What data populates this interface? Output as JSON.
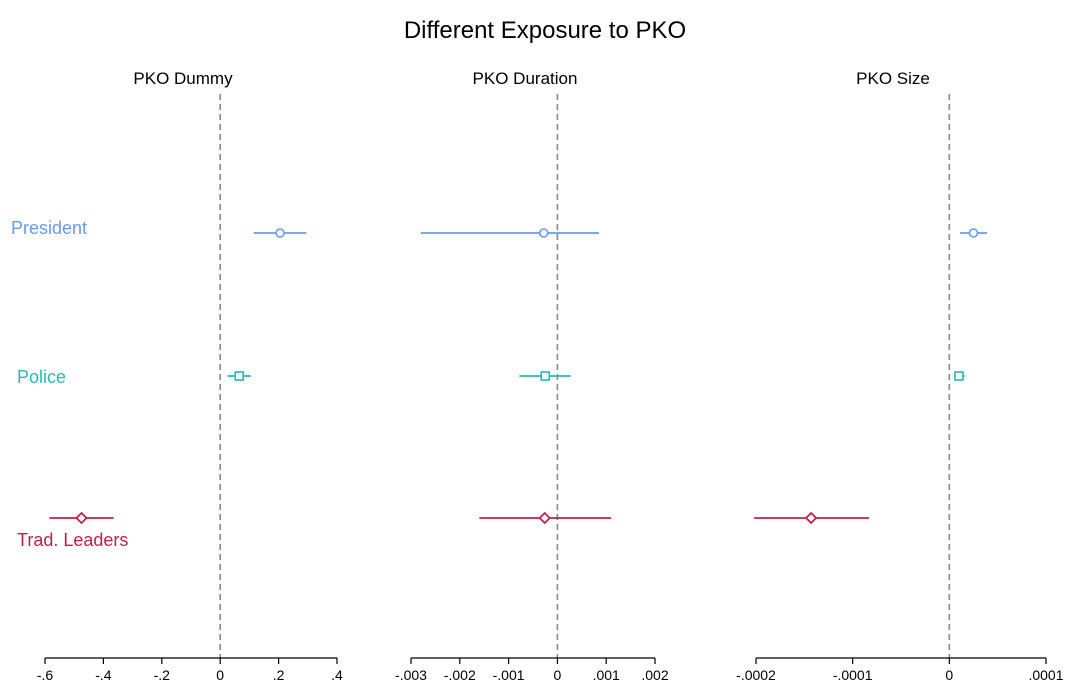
{
  "title": "Different Exposure to PKO",
  "colors": {
    "president": "#6B9AE8",
    "police": "#26BDB1",
    "trad_leaders": "#C0204C",
    "zero_line": "#888888",
    "axis": "#000000"
  },
  "rows": [
    {
      "key": "president",
      "label": "President",
      "marker": "circle"
    },
    {
      "key": "police",
      "label": "Police",
      "marker": "square"
    },
    {
      "key": "trad_leaders",
      "label": "Trad. Leaders",
      "marker": "diamond"
    }
  ],
  "chart_data": [
    {
      "type": "scatter",
      "subtitle": "PKO Dummy",
      "xlim": [
        -0.6,
        0.4
      ],
      "ticks": [
        -0.6,
        -0.4,
        -0.2,
        0,
        0.2,
        0.4
      ],
      "tick_labels": [
        "-.6",
        "-.4",
        "-.2",
        "0",
        ".2",
        ".4"
      ],
      "reference_line": 0,
      "estimates": [
        {
          "row": "president",
          "value": 0.205,
          "ci": [
            0.115,
            0.295
          ]
        },
        {
          "row": "police",
          "value": 0.065,
          "ci": [
            0.025,
            0.105
          ]
        },
        {
          "row": "trad_leaders",
          "value": -0.475,
          "ci": [
            -0.585,
            -0.365
          ]
        }
      ]
    },
    {
      "type": "scatter",
      "subtitle": "PKO Duration",
      "xlim": [
        -0.003,
        0.002
      ],
      "ticks": [
        -0.003,
        -0.002,
        -0.001,
        0,
        0.001,
        0.002
      ],
      "tick_labels": [
        "-.003",
        "-.002",
        "-.001",
        "0",
        ".001",
        ".002"
      ],
      "reference_line": 0,
      "estimates": [
        {
          "row": "president",
          "value": -0.00028,
          "ci": [
            -0.0028,
            0.00085
          ]
        },
        {
          "row": "police",
          "value": -0.00025,
          "ci": [
            -0.00078,
            0.00027
          ]
        },
        {
          "row": "trad_leaders",
          "value": -0.00026,
          "ci": [
            -0.0016,
            0.0011
          ]
        }
      ]
    },
    {
      "type": "scatter",
      "subtitle": "PKO Size",
      "xlim": [
        -0.0002,
        0.0001
      ],
      "ticks": [
        -0.0002,
        -0.0001,
        0,
        0.0001
      ],
      "tick_labels": [
        "-.0002",
        "-.0001",
        "0",
        ".0001"
      ],
      "reference_line": 0,
      "estimates": [
        {
          "row": "president",
          "value": 2.5e-05,
          "ci": [
            1.1e-05,
            3.9e-05
          ]
        },
        {
          "row": "police",
          "value": 1e-05,
          "ci": [
            5e-06,
            1.6e-05
          ]
        },
        {
          "row": "trad_leaders",
          "value": -0.000143,
          "ci": [
            -0.000202,
            -8.3e-05
          ]
        }
      ]
    }
  ]
}
